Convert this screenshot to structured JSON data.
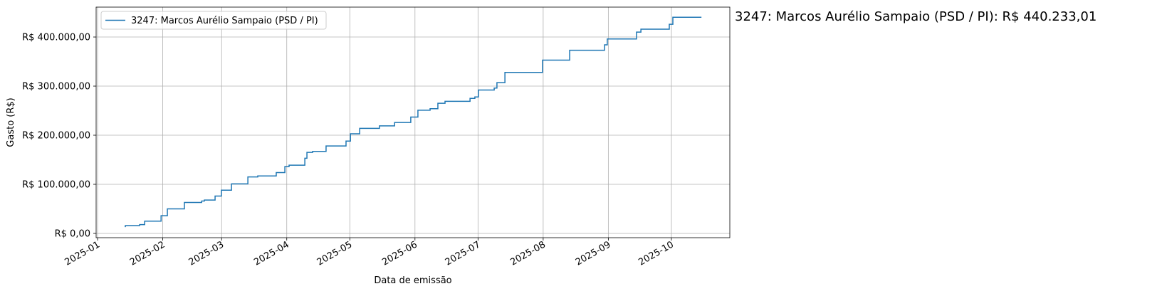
{
  "chart_data": {
    "type": "line",
    "drawstyle": "steps-post",
    "xlabel": "Data de emissão",
    "ylabel": "Gasto (R$)",
    "annotation": "3247: Marcos Aurélio Sampaio (PSD / PI): R$ 440.233,01",
    "x": [
      12.9,
      13.2,
      20,
      22.4,
      30.2,
      33.2,
      41.3,
      49.5,
      50.8,
      55.9,
      58.9,
      63.7,
      71.5,
      76.2,
      85,
      89.1,
      91.1,
      98.6,
      99.6,
      102.3,
      108.7,
      118.2,
      120.3,
      124.7,
      134.1,
      141.3,
      149,
      152.4,
      158.2,
      161.9,
      165.3,
      177.2,
      179.5,
      181.2,
      188.7,
      190,
      193.8,
      211.7,
      224.6,
      241.2,
      242.5,
      256.4,
      258.5,
      272,
      273.7,
      287.3
    ],
    "series": [
      {
        "name": "3247: Marcos Aurélio Sampaio (PSD / PI)",
        "color": "#1f77b4",
        "values": [
          14000,
          16000,
          18000,
          25000,
          36000,
          50000,
          63000,
          66000,
          68000,
          76000,
          88000,
          101000,
          115000,
          117000,
          124000,
          136000,
          139000,
          153000,
          165000,
          167000,
          178000,
          188000,
          203000,
          214000,
          219000,
          226000,
          237000,
          251000,
          254000,
          265000,
          269000,
          275000,
          278000,
          292000,
          296000,
          307000,
          328000,
          353000,
          373000,
          384000,
          396000,
          410000,
          416000,
          426000,
          440233.01,
          440233.01
        ]
      }
    ],
    "xlim": [
      -0.7,
      300.8
    ],
    "xticks": [
      {
        "value": 0,
        "label": "2025-01"
      },
      {
        "value": 31,
        "label": "2025-02"
      },
      {
        "value": 59,
        "label": "2025-03"
      },
      {
        "value": 90,
        "label": "2025-04"
      },
      {
        "value": 120,
        "label": "2025-05"
      },
      {
        "value": 151,
        "label": "2025-06"
      },
      {
        "value": 181,
        "label": "2025-07"
      },
      {
        "value": 212,
        "label": "2025-08"
      },
      {
        "value": 243,
        "label": "2025-09"
      },
      {
        "value": 273,
        "label": "2025-10"
      }
    ],
    "ylim": [
      -8700,
      460900
    ],
    "yticks": [
      {
        "value": 0,
        "label": "R$ 0,00"
      },
      {
        "value": 100000,
        "label": "R$ 100.000,00"
      },
      {
        "value": 200000,
        "label": "R$ 200.000,00"
      },
      {
        "value": 300000,
        "label": "R$ 300.000,00"
      },
      {
        "value": 400000,
        "label": "R$ 400.000,00"
      }
    ],
    "grid": true,
    "legend": "upper left"
  }
}
